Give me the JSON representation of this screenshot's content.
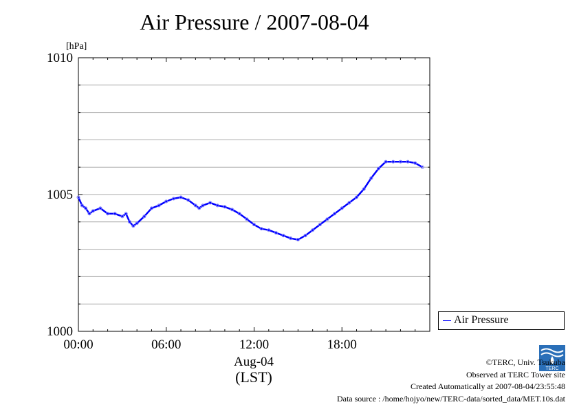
{
  "chart_data": {
    "type": "line",
    "title": "Air Pressure / 2007-08-04",
    "unit": "[hPa]",
    "ylim": [
      1000,
      1010
    ],
    "y_ticks": [
      1000,
      1005,
      1010
    ],
    "y_tick_labels": [
      "1000",
      "1005",
      "1010"
    ],
    "xlim": [
      "00:00",
      "24:00"
    ],
    "x_tick_labels": [
      "00:00",
      "06:00",
      "12:00",
      "18:00"
    ],
    "x_date_label": "Aug-04",
    "x_unit_label": "(LST)",
    "grid": true,
    "legend_position": "right-bottom",
    "series": [
      {
        "name": "Air Pressure",
        "color": "#0000ff",
        "x_hours": [
          0,
          0.25,
          0.5,
          0.75,
          1,
          1.5,
          2,
          2.5,
          3,
          3.25,
          3.5,
          3.75,
          4,
          4.5,
          5,
          5.5,
          6,
          6.5,
          7,
          7.5,
          8,
          8.25,
          8.5,
          9,
          9.5,
          10,
          10.5,
          11,
          11.5,
          12,
          12.5,
          13,
          13.5,
          14,
          14.5,
          15,
          15.5,
          16,
          16.5,
          17,
          17.5,
          18,
          18.5,
          19,
          19.5,
          20,
          20.5,
          21,
          21.5,
          22,
          22.5,
          23,
          23.5
        ],
        "y_hpa": [
          1004.9,
          1004.6,
          1004.5,
          1004.3,
          1004.4,
          1004.5,
          1004.3,
          1004.3,
          1004.2,
          1004.3,
          1004.0,
          1003.85,
          1003.95,
          1004.2,
          1004.5,
          1004.6,
          1004.75,
          1004.85,
          1004.9,
          1004.8,
          1004.6,
          1004.5,
          1004.6,
          1004.7,
          1004.6,
          1004.55,
          1004.45,
          1004.3,
          1004.1,
          1003.9,
          1003.75,
          1003.7,
          1003.6,
          1003.5,
          1003.4,
          1003.35,
          1003.5,
          1003.7,
          1003.9,
          1004.1,
          1004.3,
          1004.5,
          1004.7,
          1004.9,
          1005.2,
          1005.6,
          1005.95,
          1006.2,
          1006.2,
          1006.2,
          1006.2,
          1006.15,
          1006.0
        ]
      }
    ]
  },
  "credits": {
    "copyright": "©TERC, Univ. Tsukuba",
    "observed": "Observed at TERC Tower site",
    "created": "Created Automatically at 2007-08-04/23:55:48",
    "source": "Data source : /home/hojyo/new/TERC-data/sorted_data/MET.10s.dat"
  },
  "logo": {
    "icon": "terc-logo-icon",
    "text": "TERC"
  }
}
